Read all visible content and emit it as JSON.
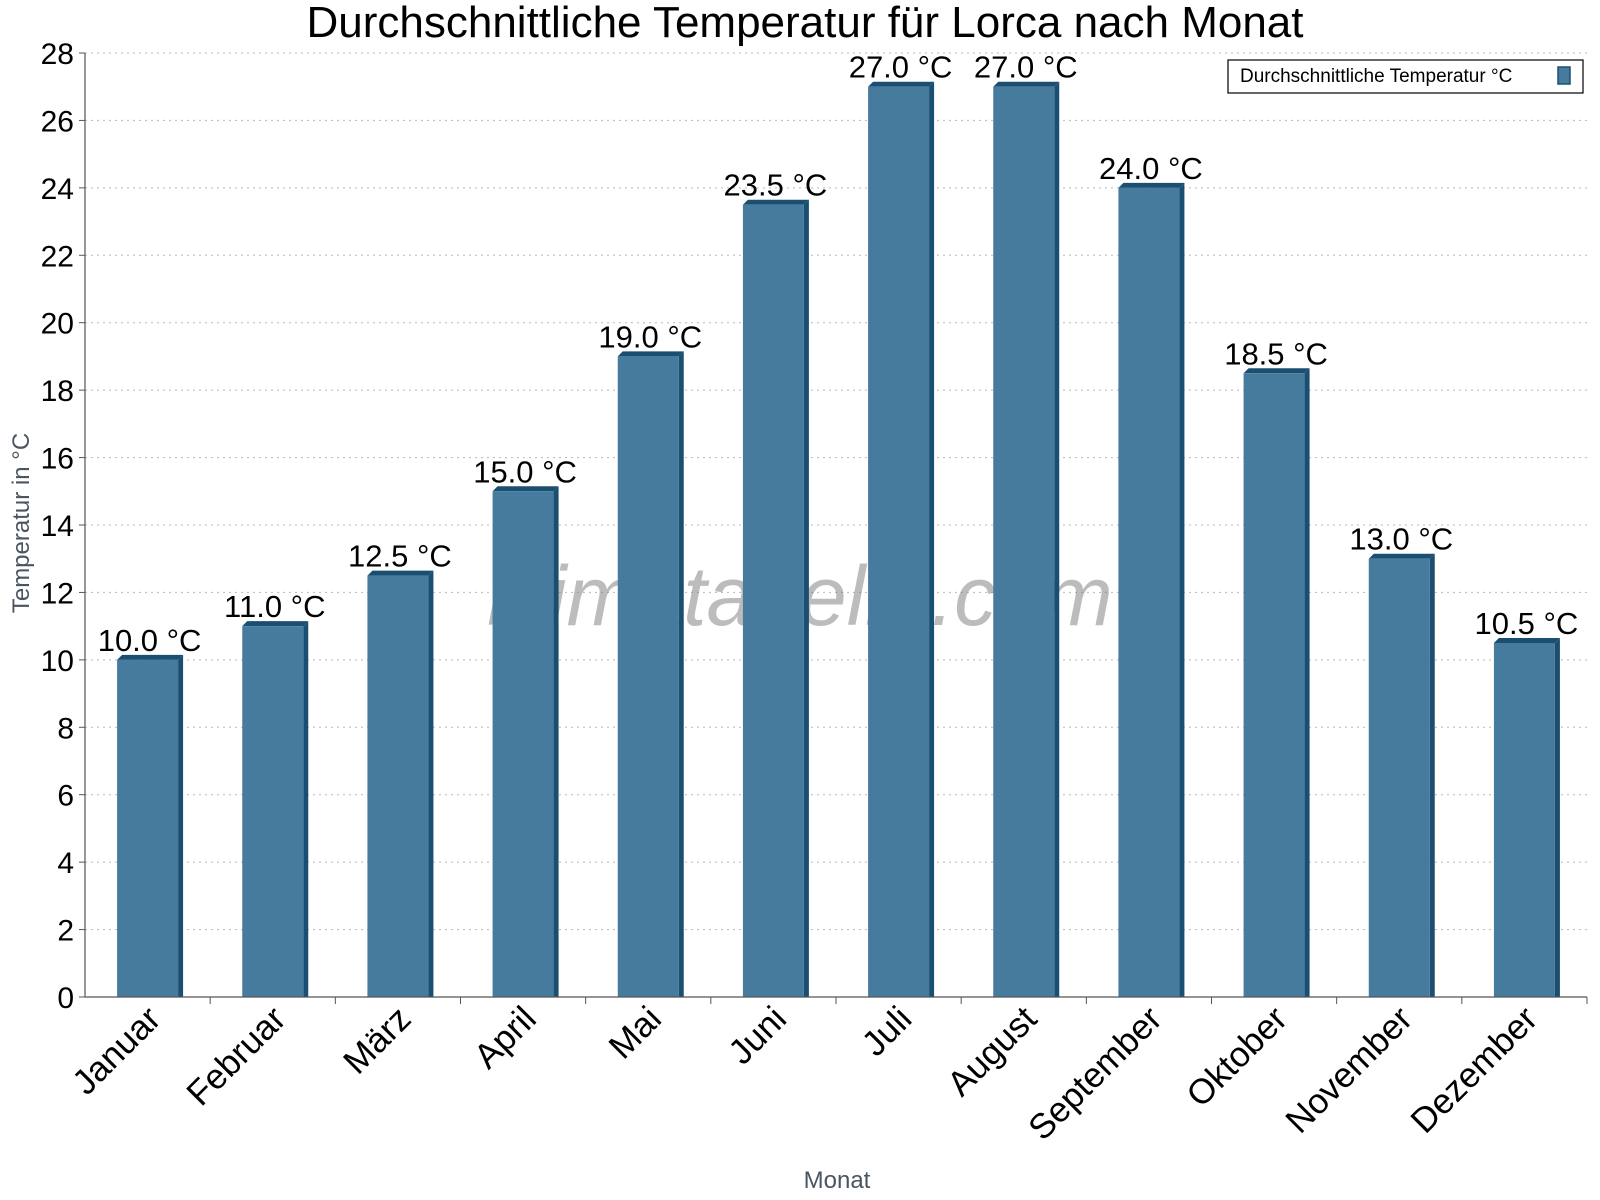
{
  "chart_data": {
    "type": "bar",
    "title": "Durchschnittliche Temperatur für Lorca nach Monat",
    "xlabel": "Monat",
    "ylabel": "Temperatur in °C",
    "categories": [
      "Januar",
      "Februar",
      "März",
      "April",
      "Mai",
      "Juni",
      "Juli",
      "August",
      "September",
      "Oktober",
      "November",
      "Dezember"
    ],
    "series": [
      {
        "name": "Durchschnittliche Temperatur °C",
        "values": [
          10.0,
          11.0,
          12.5,
          15.0,
          19.0,
          23.5,
          27.0,
          27.0,
          24.0,
          18.5,
          13.0,
          10.5
        ],
        "labels": [
          "10.0 °C",
          "11.0 °C",
          "12.5 °C",
          "15.0 °C",
          "19.0 °C",
          "23.5 °C",
          "27.0 °C",
          "27.0 °C",
          "24.0 °C",
          "18.5 °C",
          "13.0 °C",
          "10.5 °C"
        ],
        "color": "#467b9d",
        "color_dark": "#1b4f72"
      }
    ],
    "ylim": [
      0,
      28
    ],
    "yticks": [
      0,
      2,
      4,
      6,
      8,
      10,
      12,
      14,
      16,
      18,
      20,
      22,
      24,
      26,
      28
    ],
    "grid": true,
    "legend_position": "top-right"
  },
  "watermark": "klimatabelle.com"
}
